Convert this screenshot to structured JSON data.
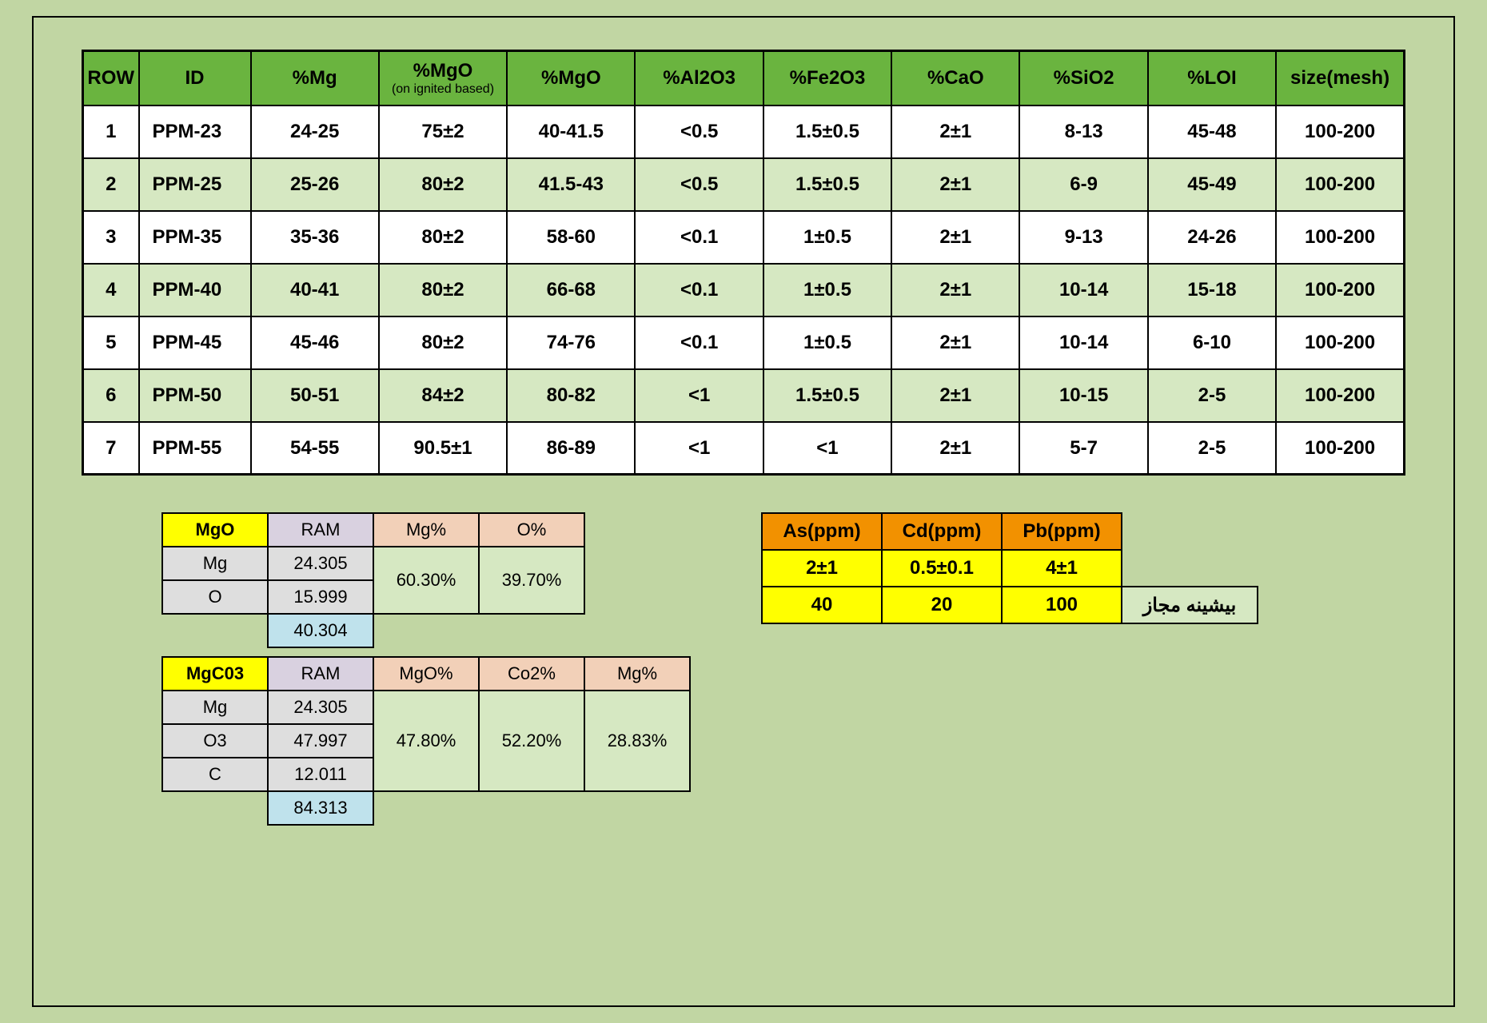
{
  "colors": {
    "page_bg": "#c1d6a3",
    "header_bg": "#6ab43f",
    "row_odd_bg": "#ffffff",
    "row_even_bg": "#d6e8c2",
    "yellow": "#ffff00",
    "orange": "#f29100",
    "peach": "#f2d0b8",
    "gray_hdr": "#d9d1e0",
    "gray_val": "#dedede",
    "blue_val": "#bfe2ec",
    "border": "#000000"
  },
  "specs_table": {
    "type": "table",
    "columns": [
      "ROW",
      "ID",
      "%Mg",
      "%MgO\n(on ignited based)",
      "%MgO",
      "%Al2O3",
      "%Fe2O3",
      "%CaO",
      "%SiO2",
      "%LOI",
      "size(mesh)"
    ],
    "header_sub": {
      "3": "(on  ignited based)"
    },
    "rows": [
      [
        "1",
        "PPM-23",
        "24-25",
        "75±2",
        "40-41.5",
        "<0.5",
        "1.5±0.5",
        "2±1",
        "8-13",
        "45-48",
        "100-200"
      ],
      [
        "2",
        "PPM-25",
        "25-26",
        "80±2",
        "41.5-43",
        "<0.5",
        "1.5±0.5",
        "2±1",
        "6-9",
        "45-49",
        "100-200"
      ],
      [
        "3",
        "PPM-35",
        "35-36",
        "80±2",
        "58-60",
        "<0.1",
        "1±0.5",
        "2±1",
        "9-13",
        "24-26",
        "100-200"
      ],
      [
        "4",
        "PPM-40",
        "40-41",
        "80±2",
        "66-68",
        "<0.1",
        "1±0.5",
        "2±1",
        "10-14",
        "15-18",
        "100-200"
      ],
      [
        "5",
        "PPM-45",
        "45-46",
        "80±2",
        "74-76",
        "<0.1",
        "1±0.5",
        "2±1",
        "10-14",
        "6-10",
        "100-200"
      ],
      [
        "6",
        "PPM-50",
        "50-51",
        "84±2",
        "80-82",
        "<1",
        "1.5±0.5",
        "2±1",
        "10-15",
        "2-5",
        "100-200"
      ],
      [
        "7",
        "PPM-55",
        "54-55",
        "90.5±1",
        "86-89",
        "<1",
        "<1",
        "2±1",
        "5-7",
        "2-5",
        "100-200"
      ]
    ]
  },
  "mgo_comp": {
    "title": "MgO",
    "cols": [
      "RAM",
      "Mg%",
      "O%"
    ],
    "elements": [
      {
        "name": "Mg",
        "ram": "24.305"
      },
      {
        "name": "O",
        "ram": "15.999"
      }
    ],
    "total": "40.304",
    "pct1": "60.30%",
    "pct2": "39.70%"
  },
  "mgco3_comp": {
    "title": "MgC03",
    "cols": [
      "RAM",
      "MgO%",
      "Co2%",
      "Mg%"
    ],
    "elements": [
      {
        "name": "Mg",
        "ram": "24.305"
      },
      {
        "name": "O3",
        "ram": "47.997"
      },
      {
        "name": "C",
        "ram": "12.011"
      }
    ],
    "total": "84.313",
    "pct1": "47.80%",
    "pct2": "52.20%",
    "pct3": "28.83%"
  },
  "ppm_limits": {
    "headers": [
      "As(ppm)",
      "Cd(ppm)",
      "Pb(ppm)"
    ],
    "values": [
      "2±1",
      "0.5±0.1",
      "4±1"
    ],
    "max": [
      "40",
      "20",
      "100"
    ],
    "max_label": "بیشینه مجاز"
  }
}
